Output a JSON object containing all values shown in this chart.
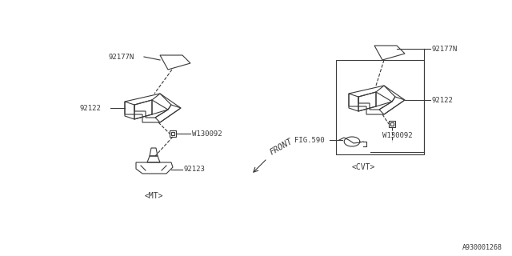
{
  "bg_color": "#ffffff",
  "line_color": "#3a3a3a",
  "text_color": "#3a3a3a",
  "watermark": "A930001268",
  "labels": {
    "92177N_left": "92177N",
    "92122_left": "92122",
    "W130092_left": "W130092",
    "92123": "92123",
    "MT": "<MT>",
    "FRONT": "FRONT",
    "92177N_right": "92177N",
    "92122_right": "92122",
    "W130092_right": "W130092",
    "FIG590": "FIG.590",
    "CVT": "<CVT>"
  },
  "figsize": [
    6.4,
    3.2
  ],
  "dpi": 100
}
